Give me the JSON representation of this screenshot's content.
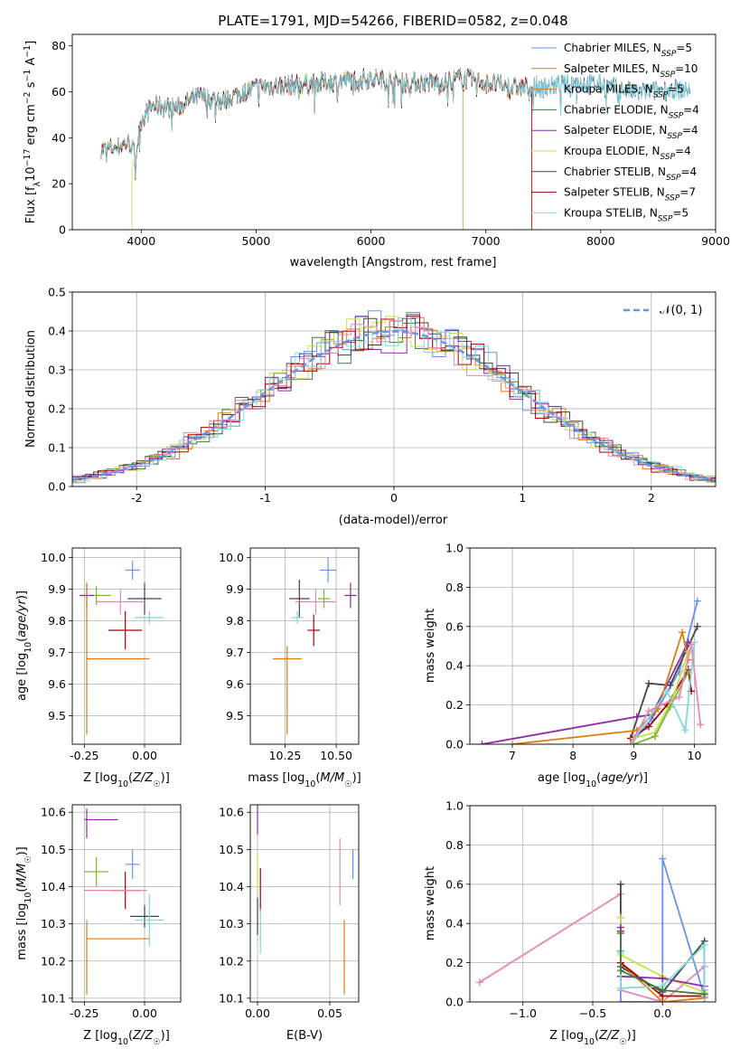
{
  "colors": {
    "blue": "#6495ED",
    "orange": "#E07B10",
    "green": "#3B7D3B",
    "purple": "#8E2AA8",
    "yellow": "#C9E04A",
    "dark": "#444444",
    "red": "#A80000",
    "cyan": "#7FD8E0",
    "pink": "#E886B8",
    "lime": "#78B828"
  },
  "chart_data": [
    {
      "id": "spectrum",
      "type": "line",
      "title": "PLATE=1791, MJD=54266, FIBERID=0582, z=0.048",
      "xlabel": "wavelength [Angstrom, rest frame]",
      "ylabel": "Flux [fλ10⁻¹⁷ erg cm⁻² s⁻¹ A⁻¹]",
      "xlim": [
        3400,
        9000
      ],
      "ylim": [
        0,
        85
      ],
      "xticks": [
        4000,
        5000,
        6000,
        7000,
        8000,
        9000
      ],
      "yticks": [
        0,
        20,
        40,
        60,
        80
      ],
      "legend_position": "upper-right",
      "continuum": {
        "wavelength": [
          3650,
          3800,
          3900,
          3950,
          4000,
          4100,
          4300,
          4500,
          4700,
          5000,
          5300,
          5600,
          6000,
          6300,
          6600,
          6800,
          7000,
          7200,
          7500,
          7800,
          8000,
          8300,
          8600,
          8780
        ],
        "flux": [
          35,
          36,
          38,
          32,
          48,
          54,
          53,
          58,
          56,
          62,
          63,
          64,
          66,
          64,
          64,
          66,
          64,
          62,
          62,
          64,
          63,
          60,
          61,
          61
        ]
      },
      "series": [
        {
          "name": "Chabrier MILES, N_SSP=5",
          "color_key": "blue",
          "x_end": 8780
        },
        {
          "name": "Salpeter MILES, N_SSP=10",
          "color_key": "orange",
          "x_end": 7400
        },
        {
          "name": "Kroupa MILES, N_SSP=5",
          "color_key": "orange",
          "x_end": 7400
        },
        {
          "name": "Chabrier ELODIE, N_SSP=4",
          "color_key": "green",
          "x_end": 6800
        },
        {
          "name": "Salpeter ELODIE, N_SSP=4",
          "color_key": "purple",
          "x_end": 6800
        },
        {
          "name": "Kroupa ELODIE, N_SSP=4",
          "color_key": "yellow",
          "x_end": 6800
        },
        {
          "name": "Chabrier STELIB, N_SSP=4",
          "color_key": "dark",
          "x_end": 8780
        },
        {
          "name": "Salpeter STELIB, N_SSP=7",
          "color_key": "red",
          "x_end": 7400
        },
        {
          "name": "Kroupa STELIB, N_SSP=5",
          "color_key": "cyan",
          "x_end": 8780
        }
      ],
      "legend": [
        {
          "base": "Chabrier MILES, N",
          "sub": "SSP",
          "tail": "=5",
          "color_key": "blue"
        },
        {
          "base": "Salpeter MILES, N",
          "sub": "SSP",
          "tail": "=10",
          "color_key": "orange"
        },
        {
          "base": "Kroupa MILES, N",
          "sub": "SSP",
          "tail": "=5",
          "color_key": "orange"
        },
        {
          "base": "Chabrier ELODIE, N",
          "sub": "SSP",
          "tail": "=4",
          "color_key": "green"
        },
        {
          "base": "Salpeter ELODIE, N",
          "sub": "SSP",
          "tail": "=4",
          "color_key": "purple"
        },
        {
          "base": "Kroupa ELODIE, N",
          "sub": "SSP",
          "tail": "=4",
          "color_key": "yellow"
        },
        {
          "base": "Chabrier STELIB, N",
          "sub": "SSP",
          "tail": "=4",
          "color_key": "dark"
        },
        {
          "base": "Salpeter STELIB, N",
          "sub": "SSP",
          "tail": "=7",
          "color_key": "red"
        },
        {
          "base": "Kroupa STELIB, N",
          "sub": "SSP",
          "tail": "=5",
          "color_key": "cyan"
        }
      ]
    },
    {
      "id": "residuals",
      "type": "line",
      "xlabel": "(data-model)/error",
      "ylabel": "Normed distribution",
      "xlim": [
        -2.5,
        2.5
      ],
      "ylim": [
        0,
        0.5
      ],
      "xticks": [
        -2,
        -1,
        0,
        1,
        2
      ],
      "yticks": [
        0.0,
        0.1,
        0.2,
        0.3,
        0.4,
        0.5
      ],
      "grid": true,
      "legend_position": "upper-right",
      "legend_label": "𝒩(0, 1)",
      "reference_curve": {
        "name": "N(0,1)",
        "mean": 0,
        "sigma": 1,
        "style": "dashed",
        "color_key": "blue"
      },
      "histogram_colors": [
        "blue",
        "orange",
        "green",
        "purple",
        "yellow",
        "dark",
        "red",
        "cyan",
        "pink"
      ],
      "bin_width": 0.1
    },
    {
      "id": "age_vs_Z",
      "type": "scatter",
      "xlabel": "Z [log10(Z/Z☉)]",
      "ylabel": "age [log10(age/yr)]",
      "xlim": [
        -0.3,
        0.15
      ],
      "ylim": [
        9.41,
        10.03
      ],
      "xticks": [
        -0.25,
        0.0
      ],
      "yticks": [
        9.5,
        9.6,
        9.7,
        9.8,
        9.9,
        10.0
      ],
      "grid": true,
      "points": [
        {
          "color_key": "blue",
          "x": -0.05,
          "y": 9.96,
          "xerr": 0.03,
          "yerr": 0.03
        },
        {
          "color_key": "dark",
          "x": 0.0,
          "y": 9.87,
          "xerr": 0.07,
          "yerr": 0.05
        },
        {
          "color_key": "lime",
          "x": -0.2,
          "y": 9.88,
          "xerr": 0.06,
          "yerr": 0.03
        },
        {
          "color_key": "purple",
          "x": -0.24,
          "y": 9.88,
          "xerr": 0.03,
          "yerr": 0.04
        },
        {
          "color_key": "pink",
          "x": -0.1,
          "y": 9.86,
          "xerr": 0.1,
          "yerr": 0.04
        },
        {
          "color_key": "cyan",
          "x": 0.02,
          "y": 9.81,
          "xerr": 0.06,
          "yerr": 0.02
        },
        {
          "color_key": "red",
          "x": -0.08,
          "y": 9.77,
          "xerr": 0.07,
          "yerr": 0.06
        },
        {
          "color_key": "orange",
          "x": -0.24,
          "y": 9.68,
          "xerr": 0.0,
          "yerr": 0.24
        },
        {
          "color_key": "orange",
          "x": -0.11,
          "y": 9.68,
          "xerr": 0.13,
          "yerr": 0.0
        }
      ]
    },
    {
      "id": "age_vs_mass",
      "type": "scatter",
      "xlabel": "mass [log10(M/M☉)]",
      "ylabel": "",
      "xlim": [
        10.08,
        10.61
      ],
      "ylim": [
        9.41,
        10.03
      ],
      "xticks": [
        10.25,
        10.5
      ],
      "yticks": [
        9.5,
        9.6,
        9.7,
        9.8,
        9.9,
        10.0
      ],
      "grid": true,
      "points": [
        {
          "color_key": "blue",
          "x": 10.46,
          "y": 9.96,
          "xerr": 0.04,
          "yerr": 0.04
        },
        {
          "color_key": "dark",
          "x": 10.32,
          "y": 9.87,
          "xerr": 0.05,
          "yerr": 0.06
        },
        {
          "color_key": "lime",
          "x": 10.44,
          "y": 9.87,
          "xerr": 0.03,
          "yerr": 0.03
        },
        {
          "color_key": "purple",
          "x": 10.57,
          "y": 9.88,
          "xerr": 0.03,
          "yerr": 0.04
        },
        {
          "color_key": "pink",
          "x": 10.4,
          "y": 9.86,
          "xerr": 0.1,
          "yerr": 0.04
        },
        {
          "color_key": "cyan",
          "x": 10.31,
          "y": 9.81,
          "xerr": 0.03,
          "yerr": 0.02
        },
        {
          "color_key": "red",
          "x": 10.39,
          "y": 9.77,
          "xerr": 0.03,
          "yerr": 0.05
        },
        {
          "color_key": "orange",
          "x": 10.26,
          "y": 9.68,
          "xerr": 0.07,
          "yerr": 0.0
        },
        {
          "color_key": "orange",
          "x": 10.26,
          "y": 9.58,
          "xerr": 0.0,
          "yerr": 0.14
        }
      ]
    },
    {
      "id": "mass_weight_vs_age",
      "type": "line",
      "xlabel": "age [log10(age/yr)]",
      "ylabel": "mass weight",
      "xlim": [
        6.3,
        10.35
      ],
      "ylim": [
        0,
        1.0
      ],
      "xticks": [
        7,
        8,
        9,
        10
      ],
      "yticks": [
        0.0,
        0.2,
        0.4,
        0.6,
        0.8,
        1.0
      ],
      "grid": true,
      "series": [
        {
          "color_key": "blue",
          "x": [
            8.95,
            9.3,
            9.75,
            10.05
          ],
          "y": [
            0.0,
            0.13,
            0.37,
            0.73
          ]
        },
        {
          "color_key": "dark",
          "x": [
            8.95,
            9.25,
            9.6,
            10.05
          ],
          "y": [
            0.03,
            0.31,
            0.3,
            0.6
          ]
        },
        {
          "color_key": "purple",
          "x": [
            6.5,
            9.05,
            9.3,
            9.9
          ],
          "y": [
            0.0,
            0.14,
            0.15,
            0.52
          ]
        },
        {
          "color_key": "orange",
          "x": [
            7.0,
            9.05,
            9.4,
            9.8,
            9.9
          ],
          "y": [
            0.0,
            0.07,
            0.18,
            0.57,
            0.43
          ]
        },
        {
          "color_key": "red",
          "x": [
            8.95,
            9.25,
            9.55,
            9.9,
            9.95
          ],
          "y": [
            0.03,
            0.09,
            0.2,
            0.38,
            0.27
          ]
        },
        {
          "color_key": "yellow",
          "x": [
            9.0,
            9.35,
            9.65,
            9.9
          ],
          "y": [
            0.03,
            0.06,
            0.24,
            0.47
          ]
        },
        {
          "color_key": "lime",
          "x": [
            9.0,
            9.35,
            9.6,
            9.9
          ],
          "y": [
            0.0,
            0.04,
            0.19,
            0.37
          ]
        },
        {
          "color_key": "cyan",
          "x": [
            8.95,
            9.55,
            9.85,
            10.0
          ],
          "y": [
            0.0,
            0.27,
            0.07,
            0.52
          ]
        },
        {
          "color_key": "pink",
          "x": [
            8.95,
            9.25,
            9.75,
            9.95,
            10.1
          ],
          "y": [
            0.0,
            0.17,
            0.24,
            0.51,
            0.1
          ]
        }
      ]
    },
    {
      "id": "mass_vs_Z",
      "type": "scatter",
      "xlabel": "Z [log10(Z/Z☉)]",
      "ylabel": "mass [log10(M/M☉)]",
      "xlim": [
        -0.3,
        0.15
      ],
      "ylim": [
        10.09,
        10.62
      ],
      "xticks": [
        -0.25,
        0.0
      ],
      "yticks": [
        10.1,
        10.2,
        10.3,
        10.4,
        10.5,
        10.6
      ],
      "grid": true,
      "points": [
        {
          "color_key": "purple",
          "x": -0.24,
          "y": 10.57,
          "xerr": 0.0,
          "yerr": 0.04
        },
        {
          "color_key": "purple",
          "x": -0.18,
          "y": 10.58,
          "xerr": 0.07,
          "yerr": 0.0
        },
        {
          "color_key": "blue",
          "x": -0.05,
          "y": 10.46,
          "xerr": 0.03,
          "yerr": 0.04
        },
        {
          "color_key": "lime",
          "x": -0.2,
          "y": 10.44,
          "xerr": 0.05,
          "yerr": 0.04
        },
        {
          "color_key": "red",
          "x": -0.08,
          "y": 10.39,
          "xerr": 0.06,
          "yerr": 0.05
        },
        {
          "color_key": "pink",
          "x": -0.12,
          "y": 10.39,
          "xerr": 0.13,
          "yerr": 0.0
        },
        {
          "color_key": "dark",
          "x": 0.0,
          "y": 10.32,
          "xerr": 0.06,
          "yerr": 0.03
        },
        {
          "color_key": "cyan",
          "x": 0.02,
          "y": 10.31,
          "xerr": 0.06,
          "yerr": 0.07
        },
        {
          "color_key": "orange",
          "x": -0.24,
          "y": 10.21,
          "xerr": 0.0,
          "yerr": 0.1
        },
        {
          "color_key": "orange",
          "x": -0.11,
          "y": 10.26,
          "xerr": 0.13,
          "yerr": 0.0
        }
      ]
    },
    {
      "id": "mass_vs_ebv",
      "type": "scatter",
      "xlabel": "E(B-V)",
      "ylabel": "",
      "xlim": [
        -0.005,
        0.07
      ],
      "ylim": [
        10.09,
        10.62
      ],
      "xticks": [
        0.0,
        0.05
      ],
      "yticks": [
        10.1,
        10.2,
        10.3,
        10.4,
        10.5,
        10.6
      ],
      "grid": true,
      "points": [
        {
          "color_key": "purple",
          "x": 0.0,
          "y": 10.58,
          "xerr": 0.0,
          "yerr": 0.04
        },
        {
          "color_key": "yellow",
          "x": 0.0,
          "y": 10.44,
          "xerr": 0.0,
          "yerr": 0.05
        },
        {
          "color_key": "red",
          "x": 0.002,
          "y": 10.39,
          "xerr": 0.0,
          "yerr": 0.06
        },
        {
          "color_key": "dark",
          "x": 0.0,
          "y": 10.32,
          "xerr": 0.0,
          "yerr": 0.05
        },
        {
          "color_key": "cyan",
          "x": 0.002,
          "y": 10.28,
          "xerr": 0.0,
          "yerr": 0.06
        },
        {
          "color_key": "pink",
          "x": 0.057,
          "y": 10.44,
          "xerr": 0.0,
          "yerr": 0.09
        },
        {
          "color_key": "blue",
          "x": 0.066,
          "y": 10.46,
          "xerr": 0.0,
          "yerr": 0.04
        },
        {
          "color_key": "orange",
          "x": 0.06,
          "y": 10.21,
          "xerr": 0.0,
          "yerr": 0.1
        }
      ]
    },
    {
      "id": "mass_weight_vs_Z",
      "type": "line",
      "xlabel": "Z [log10(Z/Z☉)]",
      "ylabel": "mass weight",
      "xlim": [
        -1.38,
        0.38
      ],
      "ylim": [
        0,
        1.0
      ],
      "xticks": [
        -1.0,
        -0.5,
        0.0
      ],
      "yticks": [
        0.0,
        0.2,
        0.4,
        0.6,
        0.8,
        1.0
      ],
      "grid": true,
      "series": [
        {
          "color_key": "pink",
          "x": [
            -1.31,
            -0.3,
            -0.3,
            0.0,
            0.3,
            0.3
          ],
          "y": [
            0.1,
            0.55,
            0.06,
            0.0,
            0.18,
            0.06
          ]
        },
        {
          "color_key": "dark",
          "x": [
            -0.3,
            -0.3,
            0.0,
            0.3,
            0.3
          ],
          "y": [
            0.6,
            0.18,
            0.05,
            0.31,
            0.04
          ]
        },
        {
          "color_key": "blue",
          "x": [
            -0.3,
            -0.3,
            0.0,
            0.0,
            0.3
          ],
          "y": [
            0.26,
            0.0,
            0.0,
            0.73,
            0.03
          ]
        },
        {
          "color_key": "orange",
          "x": [
            -0.3,
            -0.3,
            0.0,
            0.3
          ],
          "y": [
            0.43,
            0.2,
            0.0,
            0.02
          ]
        },
        {
          "color_key": "red",
          "x": [
            -0.3,
            -0.3,
            0.0,
            0.3
          ],
          "y": [
            0.36,
            0.2,
            0.03,
            0.03
          ]
        },
        {
          "color_key": "yellow",
          "x": [
            -0.3,
            -0.3,
            0.0,
            0.3
          ],
          "y": [
            0.43,
            0.24,
            0.13,
            0.05
          ]
        },
        {
          "color_key": "purple",
          "x": [
            -0.3,
            -0.3,
            0.0,
            0.3
          ],
          "y": [
            0.38,
            0.13,
            0.12,
            0.08
          ]
        },
        {
          "color_key": "cyan",
          "x": [
            -0.3,
            -0.3,
            0.0,
            0.3,
            0.3
          ],
          "y": [
            0.25,
            0.07,
            0.08,
            0.29,
            0.03
          ]
        },
        {
          "color_key": "green",
          "x": [
            -0.3,
            -0.3,
            0.0,
            0.3
          ],
          "y": [
            0.35,
            0.16,
            0.06,
            0.04
          ]
        }
      ]
    }
  ]
}
